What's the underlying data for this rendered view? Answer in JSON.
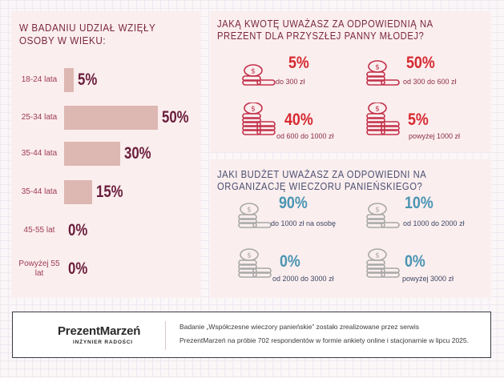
{
  "age_panel": {
    "title": "W BADANIU UDZIAŁ WZIĘŁY OSOBY W WIEKU:",
    "rows": [
      {
        "label": "18-24 lata",
        "value": "5%"
      },
      {
        "label": "25-34 lata",
        "value": "50%"
      },
      {
        "label": "35-44 lata",
        "value": "30%"
      },
      {
        "label": "35-44 lata",
        "value": "15%"
      },
      {
        "label": "45-55 lat",
        "value": "0%"
      },
      {
        "label": "Powyżej 55 lat",
        "value": "0%"
      }
    ]
  },
  "gift_panel": {
    "title": "JAKĄ KWOTĘ UWAŻASZ ZA ODPOWIEDNIĄ NA PREZENT DLA PRZYSZŁEJ PANNY MŁODEJ?",
    "items": [
      {
        "value": "5%",
        "label": "do 300 zł",
        "icon": "coin-stack-icon"
      },
      {
        "value": "50%",
        "label": "od 300 do 600 zł",
        "icon": "coin-stack-icon"
      },
      {
        "value": "40%",
        "label": "od 600 do 1000 zł",
        "icon": "coin-stack-icon"
      },
      {
        "value": "5%",
        "label": "powyżej 1000 zł",
        "icon": "coin-stack-icon"
      }
    ]
  },
  "party_panel": {
    "title": "JAKI BUDŻET UWAŻASZ ZA ODPOWIEDNI NA ORGANIZACJĘ WIECZORU PANIEŃSKIEGO?",
    "items": [
      {
        "value": "90%",
        "label": "do 1000 zł na osobę",
        "icon": "coin-stack-icon"
      },
      {
        "value": "10%",
        "label": "od 1000 do 2000 zł",
        "icon": "coin-stack-icon"
      },
      {
        "value": "0%",
        "label": "od 2000 do 3000 zł",
        "icon": "coin-stack-icon"
      },
      {
        "value": "0%",
        "label": "powyżej 3000 zł",
        "icon": "coin-stack-icon"
      }
    ]
  },
  "footer": {
    "brand": "PrezentMarzeń",
    "tagline": "INŻYNIER RADOŚCI",
    "line1": "Badanie „Współczesne wieczory panieńskie” zostało zrealizowane przez serwis",
    "line2": "PrezentMarzeń na próbie 702 respondentów w formie ankiety online i stacjonarnie w lipcu 2025."
  },
  "colors": {
    "panel": "#fbeeee",
    "bar": "#ddb7b2",
    "age_value": "#6a1d3c",
    "red_accent": "#d62930",
    "blue_accent": "#4a95b3"
  },
  "chart_data": [
    {
      "type": "bar",
      "orientation": "horizontal",
      "title": "W BADANIU UDZIAŁ WZIĘŁY OSOBY W WIEKU:",
      "categories": [
        "18-24 lata",
        "25-34 lata",
        "35-44 lata",
        "35-44 lata",
        "45-55 lat",
        "Powyżej 55 lat"
      ],
      "values": [
        5,
        50,
        30,
        15,
        0,
        0
      ],
      "unit": "%",
      "xlim": [
        0,
        50
      ],
      "grid": false
    },
    {
      "type": "table",
      "title": "JAKĄ KWOTĘ UWAŻASZ ZA ODPOWIEDNIĄ NA PREZENT DLA PRZYSZŁEJ PANNY MŁODEJ?",
      "categories": [
        "do 300 zł",
        "od 300 do 600 zł",
        "od 600 do 1000 zł",
        "powyżej 1000 zł"
      ],
      "values": [
        5,
        50,
        40,
        5
      ]
    },
    {
      "type": "table",
      "title": "JAKI BUDŻET UWAŻASZ ZA ODPOWIEDNI NA ORGANIZACJĘ WIECZORU PANIEŃSKIEGO?",
      "categories": [
        "do 1000 zł na osobę",
        "od 1000 do 2000 zł",
        "od 2000 do 3000 zł",
        "powyżej 3000 zł"
      ],
      "values": [
        90,
        10,
        0,
        0
      ]
    }
  ]
}
